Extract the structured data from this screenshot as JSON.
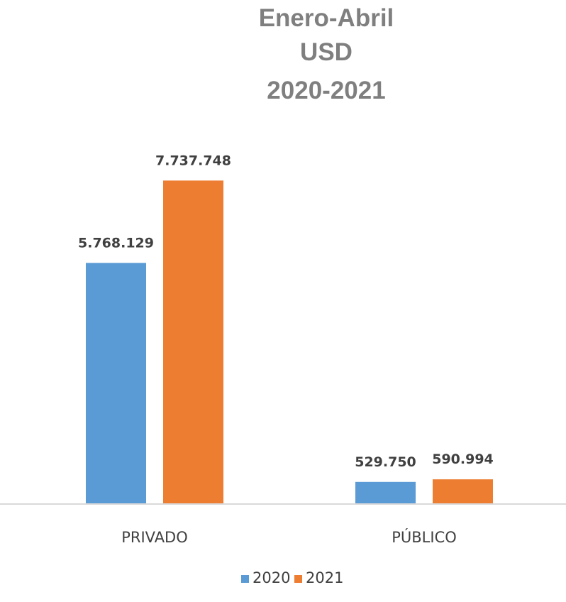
{
  "chart_data": {
    "type": "bar",
    "title_lines": [
      "Enero-Abril",
      "USD",
      "2020-2021"
    ],
    "categories": [
      "PRIVADO",
      "PÚBLICO"
    ],
    "series": [
      {
        "name": "2020",
        "color": "#5b9bd5",
        "values": [
          5768129,
          529750
        ],
        "labels": [
          "5.768.129",
          "529.750"
        ]
      },
      {
        "name": "2021",
        "color": "#ed7d31",
        "values": [
          7737748,
          590994
        ],
        "labels": [
          "7.737.748",
          "590.994"
        ]
      }
    ],
    "ylim": [
      0,
      9000000
    ],
    "grid": false,
    "legend_position": "bottom",
    "axis_color": "#d9d9d9"
  }
}
